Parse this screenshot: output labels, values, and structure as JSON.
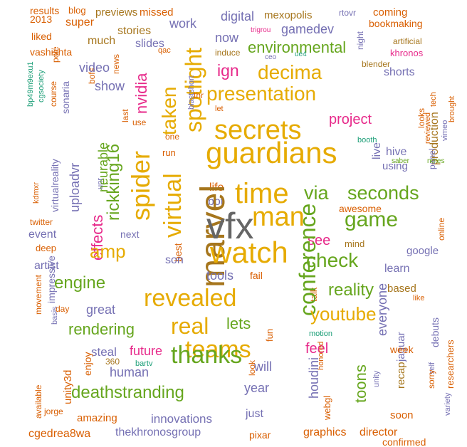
{
  "colors": {
    "orange": "#d95f02",
    "gold": "#e6ab02",
    "green": "#66a61e",
    "purple": "#7570b3",
    "magenta": "#e7298a",
    "teal": "#1b9e77",
    "brown": "#a6761d",
    "gray": "#666666"
  },
  "words": [
    "results",
    "blog",
    "previews",
    "missed",
    "mexopolis",
    "rtovr",
    "coming",
    "2013",
    "super",
    "stories",
    "digital",
    "trigrou",
    "bookmaking",
    "liked",
    "much",
    "work",
    "gamedev",
    "artificial",
    "vashishta",
    "slides",
    "now",
    "environmental",
    "khronos",
    "qac",
    "induce",
    "ceo",
    "ue4",
    "night",
    "blender",
    "bp49m9exu1",
    "pole",
    "news",
    "last",
    "nvidia",
    "ign",
    "shorts",
    "tech",
    "cgsociety",
    "course",
    "bofs",
    "video",
    "decima",
    "brought",
    "show",
    "taken",
    "spotlight",
    "presentation",
    "production",
    "sonaria",
    "blastshort",
    "thr",
    "let",
    "vimeo",
    "reviewed",
    "spider",
    "secrets",
    "project",
    "looks",
    "virtualreality",
    "use",
    "rickking16",
    "one",
    "guardians",
    "live",
    "kdmxr",
    "virtual",
    "time",
    "hive",
    "booth",
    "uploadvr",
    "neurable",
    "unr",
    "run",
    "using",
    "panel",
    "saber",
    "notes",
    "twitter",
    "effects",
    "life",
    "bot",
    "via",
    "seconds",
    "event",
    "next",
    "amp",
    "marvel",
    "vfx",
    "man",
    "game",
    "awesome",
    "deep",
    "best",
    "watch",
    "see",
    "online",
    "artist",
    "son",
    "check",
    "mind",
    "google",
    "impressive",
    "movement",
    "engine",
    "tools",
    "fail",
    "reality",
    "learn",
    "basis",
    "great",
    "revealed",
    "real",
    "lets",
    "based",
    "day",
    "rendering",
    "talk",
    "like",
    "future",
    "teams",
    "conference",
    "feel",
    "youtube",
    "debuts",
    "motion",
    "steal",
    "honored",
    "everyone",
    "jaguar",
    "week",
    "researchers",
    "360",
    "bartv",
    "thanks",
    "fun",
    "toons",
    "unity",
    "self",
    "human",
    "houdini",
    "recap",
    "sorry",
    "unity3d",
    "enjoy",
    "deathstranding",
    "will",
    "year",
    "webgl",
    "variety",
    "available",
    "look",
    "amazing",
    "innovations",
    "just",
    "jorge",
    "cgedrea8wa",
    "thekhronosgroup",
    "pixar",
    "graphics",
    "director",
    "soon",
    "confirmed"
  ]
}
